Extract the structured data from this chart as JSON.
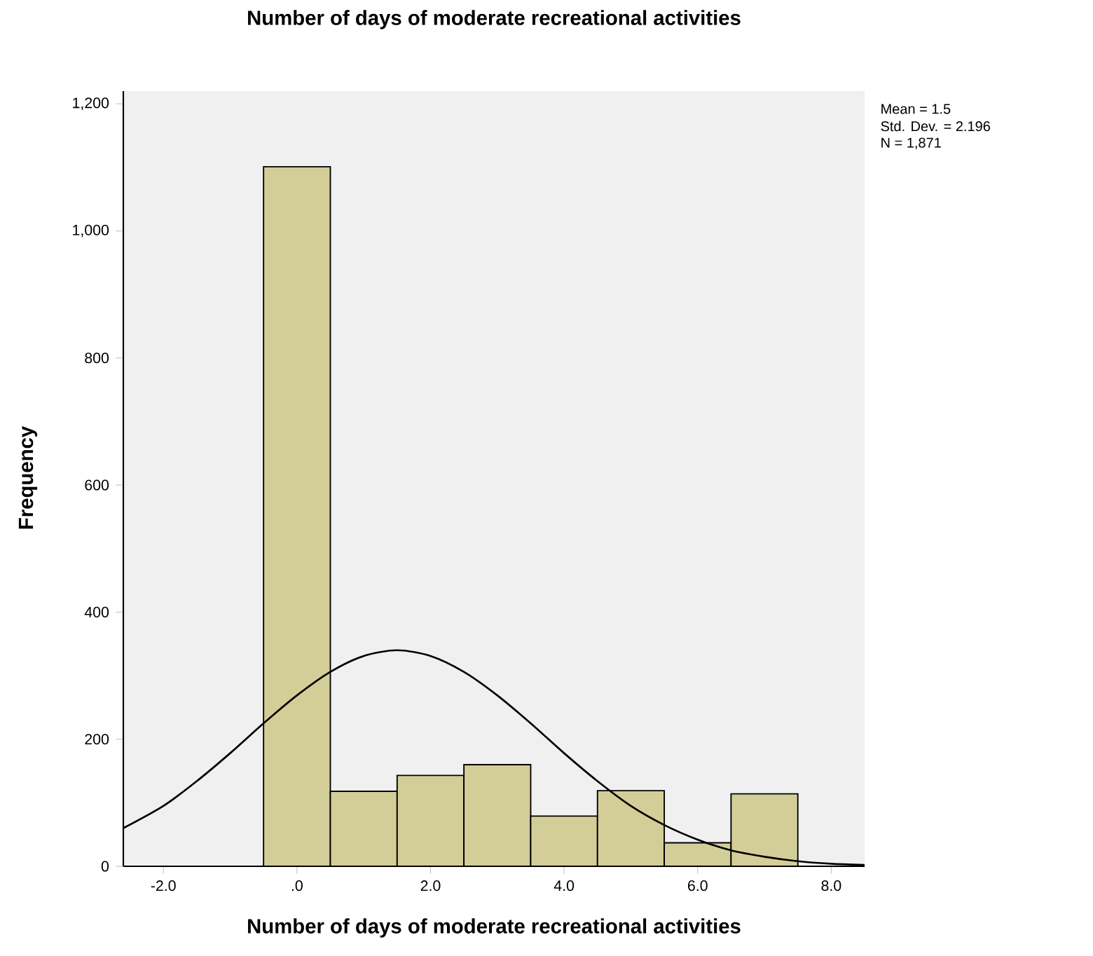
{
  "chart_data": {
    "type": "histogram",
    "title": "Number of days of moderate recreational activities",
    "xlabel": "Number of days of moderate recreational activities",
    "ylabel": "Frequency",
    "bins": [
      -0.5,
      0.5,
      1.5,
      2.5,
      3.5,
      4.5,
      5.5,
      6.5,
      7.5
    ],
    "values": [
      1101,
      118,
      143,
      160,
      79,
      119,
      37,
      114
    ],
    "color": "#d3ce98",
    "series": [
      {
        "type": "line",
        "color": "#000000",
        "x": [
          -2.6,
          -2,
          -1.5,
          -1,
          -0.5,
          0,
          0.5,
          1,
          1.5,
          2,
          2.5,
          3,
          3.5,
          4,
          4.5,
          5,
          5.5,
          6,
          6.5,
          7,
          7.5,
          8,
          8.5
        ],
        "values": [
          60,
          95,
          134,
          178,
          225,
          269,
          306,
          331,
          340,
          331,
          306,
          269,
          225,
          178,
          134,
          95,
          65,
          42,
          25,
          15,
          8,
          4,
          2
        ]
      }
    ],
    "xlim": [
      -2.6,
      8.5
    ],
    "xticks": [
      {
        "value": -2,
        "label": "-2.0"
      },
      {
        "value": 0,
        "label": ".0"
      },
      {
        "value": 2,
        "label": "2.0"
      },
      {
        "value": 4,
        "label": "4.0"
      },
      {
        "value": 6,
        "label": "6.0"
      },
      {
        "value": 8,
        "label": "8.0"
      }
    ],
    "ylim": [
      0,
      1220
    ],
    "yticks": [
      0,
      200,
      400,
      600,
      800,
      {
        "value": 1000,
        "label": "1,000"
      },
      {
        "value": 1200,
        "label": "1,200"
      }
    ],
    "annotations": [
      "Mean = 1.5",
      "Std. Dev. = 2.196",
      "N = 1,871"
    ]
  }
}
